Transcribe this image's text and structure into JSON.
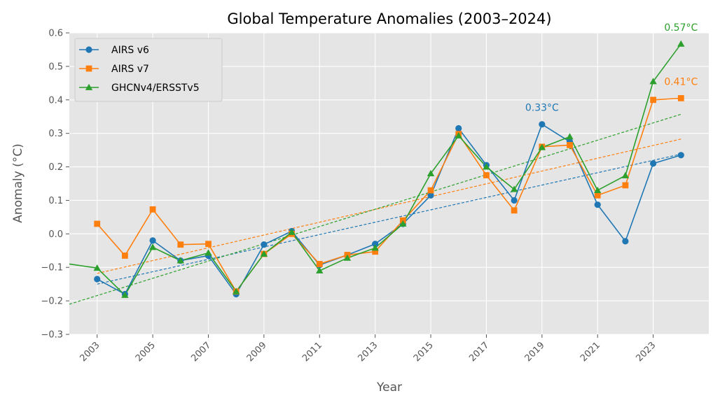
{
  "chart_data": {
    "type": "line",
    "title": "Global Temperature Anomalies (2003–2024)",
    "xlabel": "Year",
    "ylabel": "Anomaly (°C)",
    "xlim": [
      2002,
      2025
    ],
    "ylim": [
      -0.3,
      0.6
    ],
    "xticks": [
      2003,
      2005,
      2007,
      2009,
      2011,
      2013,
      2015,
      2017,
      2019,
      2021,
      2023
    ],
    "yticks": [
      -0.3,
      -0.2,
      -0.1,
      0.0,
      0.1,
      0.2,
      0.3,
      0.4,
      0.5,
      0.6
    ],
    "ytick_labels": [
      "−0.3",
      "−0.2",
      "−0.1",
      "0.0",
      "0.1",
      "0.2",
      "0.3",
      "0.4",
      "0.5",
      "0.6"
    ],
    "grid": true,
    "legend_position": "top-left",
    "background": "#e5e5e5",
    "series": [
      {
        "name": "AIRS v6",
        "color": "#1f77b4",
        "marker": "circle",
        "x": [
          2003,
          2004,
          2005,
          2006,
          2007,
          2008,
          2009,
          2010,
          2011,
          2012,
          2013,
          2014,
          2015,
          2016,
          2017,
          2018,
          2019,
          2020,
          2021,
          2022,
          2023,
          2024
        ],
        "values": [
          -0.135,
          -0.18,
          -0.02,
          -0.08,
          -0.065,
          -0.18,
          -0.032,
          0.008,
          -0.093,
          -0.063,
          -0.03,
          0.03,
          0.115,
          0.315,
          0.205,
          0.1,
          0.327,
          0.275,
          0.087,
          -0.022,
          0.21,
          0.235
        ],
        "trend": {
          "x": [
            2003,
            2024
          ],
          "values": [
            -0.15,
            0.238
          ]
        }
      },
      {
        "name": "AIRS v7",
        "color": "#ff7f0e",
        "marker": "square",
        "x": [
          2003,
          2004,
          2005,
          2006,
          2007,
          2008,
          2009,
          2010,
          2011,
          2012,
          2013,
          2014,
          2015,
          2016,
          2017,
          2018,
          2019,
          2020,
          2021,
          2022,
          2023,
          2024
        ],
        "values": [
          0.03,
          -0.065,
          0.073,
          -0.032,
          -0.03,
          -0.172,
          -0.06,
          0.0,
          -0.09,
          -0.063,
          -0.053,
          0.04,
          0.13,
          0.298,
          0.175,
          0.07,
          0.26,
          0.265,
          0.115,
          0.145,
          0.4,
          0.405
        ],
        "trend": {
          "x": [
            2003,
            2024
          ],
          "values": [
            -0.118,
            0.283
          ]
        }
      },
      {
        "name": "GHCNv4/ERSSTv5",
        "color": "#2ca02c",
        "marker": "triangle",
        "x": [
          2002,
          2003,
          2004,
          2005,
          2006,
          2007,
          2008,
          2009,
          2010,
          2011,
          2012,
          2013,
          2014,
          2015,
          2016,
          2017,
          2018,
          2019,
          2020,
          2021,
          2022,
          2023,
          2024
        ],
        "values": [
          -0.09,
          -0.102,
          -0.183,
          -0.04,
          -0.08,
          -0.057,
          -0.172,
          -0.06,
          0.005,
          -0.11,
          -0.072,
          -0.042,
          0.03,
          0.18,
          0.293,
          0.2,
          0.133,
          0.258,
          0.29,
          0.13,
          0.174,
          0.455,
          0.567
        ],
        "trend": {
          "x": [
            2002,
            2024
          ],
          "values": [
            -0.21,
            0.357
          ]
        }
      }
    ],
    "annotations": [
      {
        "text": "0.33°C",
        "x": 2019,
        "y": 0.327,
        "color": "#1f77b4"
      },
      {
        "text": "0.41°C",
        "x": 2024,
        "y": 0.405,
        "color": "#ff7f0e"
      },
      {
        "text": "0.57°C",
        "x": 2024,
        "y": 0.567,
        "color": "#2ca02c"
      }
    ]
  }
}
